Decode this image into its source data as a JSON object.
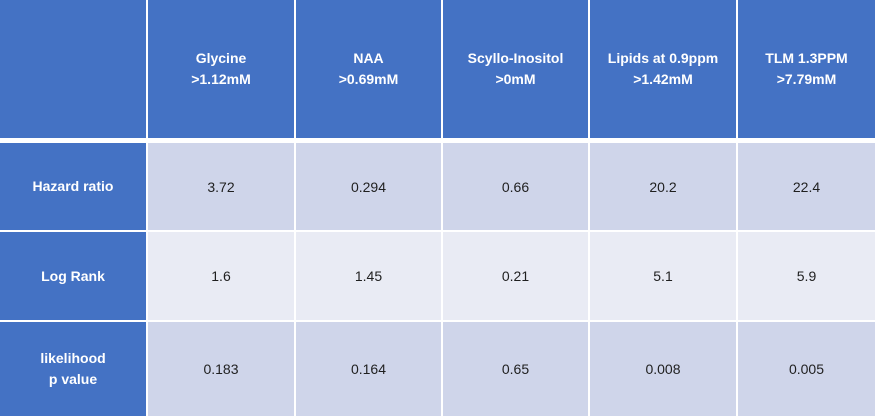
{
  "colors": {
    "header_blue": "#4472C4",
    "band_dark": "#CFD5EA",
    "band_light": "#E9EBF4",
    "grid_line": "#FFFFFF",
    "header_text": "#FFFFFF",
    "value_text": "#1F1F1F"
  },
  "table": {
    "corner_label": "",
    "column_headers": [
      {
        "name": "Glycine",
        "threshold": ">1.12mM"
      },
      {
        "name": "NAA",
        "threshold": ">0.69mM"
      },
      {
        "name": "Scyllo-Inositol",
        "threshold": ">0mM"
      },
      {
        "name": "Lipids at 0.9ppm",
        "threshold": ">1.42mM"
      },
      {
        "name": "TLM 1.3PPM",
        "threshold": ">7.79mM"
      }
    ],
    "rows": [
      {
        "label_lines": [
          "Hazard ratio"
        ],
        "values": [
          "3.72",
          "0.294",
          "0.66",
          "20.2",
          "22.4"
        ]
      },
      {
        "label_lines": [
          "Log Rank"
        ],
        "values": [
          "1.6",
          "1.45",
          "0.21",
          "5.1",
          "5.9"
        ]
      },
      {
        "label_lines": [
          "likelihood",
          "p value"
        ],
        "values": [
          "0.183",
          "0.164",
          "0.65",
          "0.008",
          "0.005"
        ]
      }
    ]
  },
  "chart_data": {
    "type": "table",
    "title": "",
    "columns": [
      "",
      "Glycine >1.12mM",
      "NAA >0.69mM",
      "Scyllo-Inositol >0mM",
      "Lipids at 0.9ppm >1.42mM",
      "TLM 1.3PPM >7.79mM"
    ],
    "rows": [
      {
        "metric": "Hazard ratio",
        "values": [
          3.72,
          0.294,
          0.66,
          20.2,
          22.4
        ]
      },
      {
        "metric": "Log Rank",
        "values": [
          1.6,
          1.45,
          0.21,
          5.1,
          5.9
        ]
      },
      {
        "metric": "likelihood p value",
        "values": [
          0.183,
          0.164,
          0.65,
          0.008,
          0.005
        ]
      }
    ],
    "layout": {
      "header_row": true,
      "header_column": true,
      "banded_rows": true,
      "grid": "white-separators"
    }
  }
}
